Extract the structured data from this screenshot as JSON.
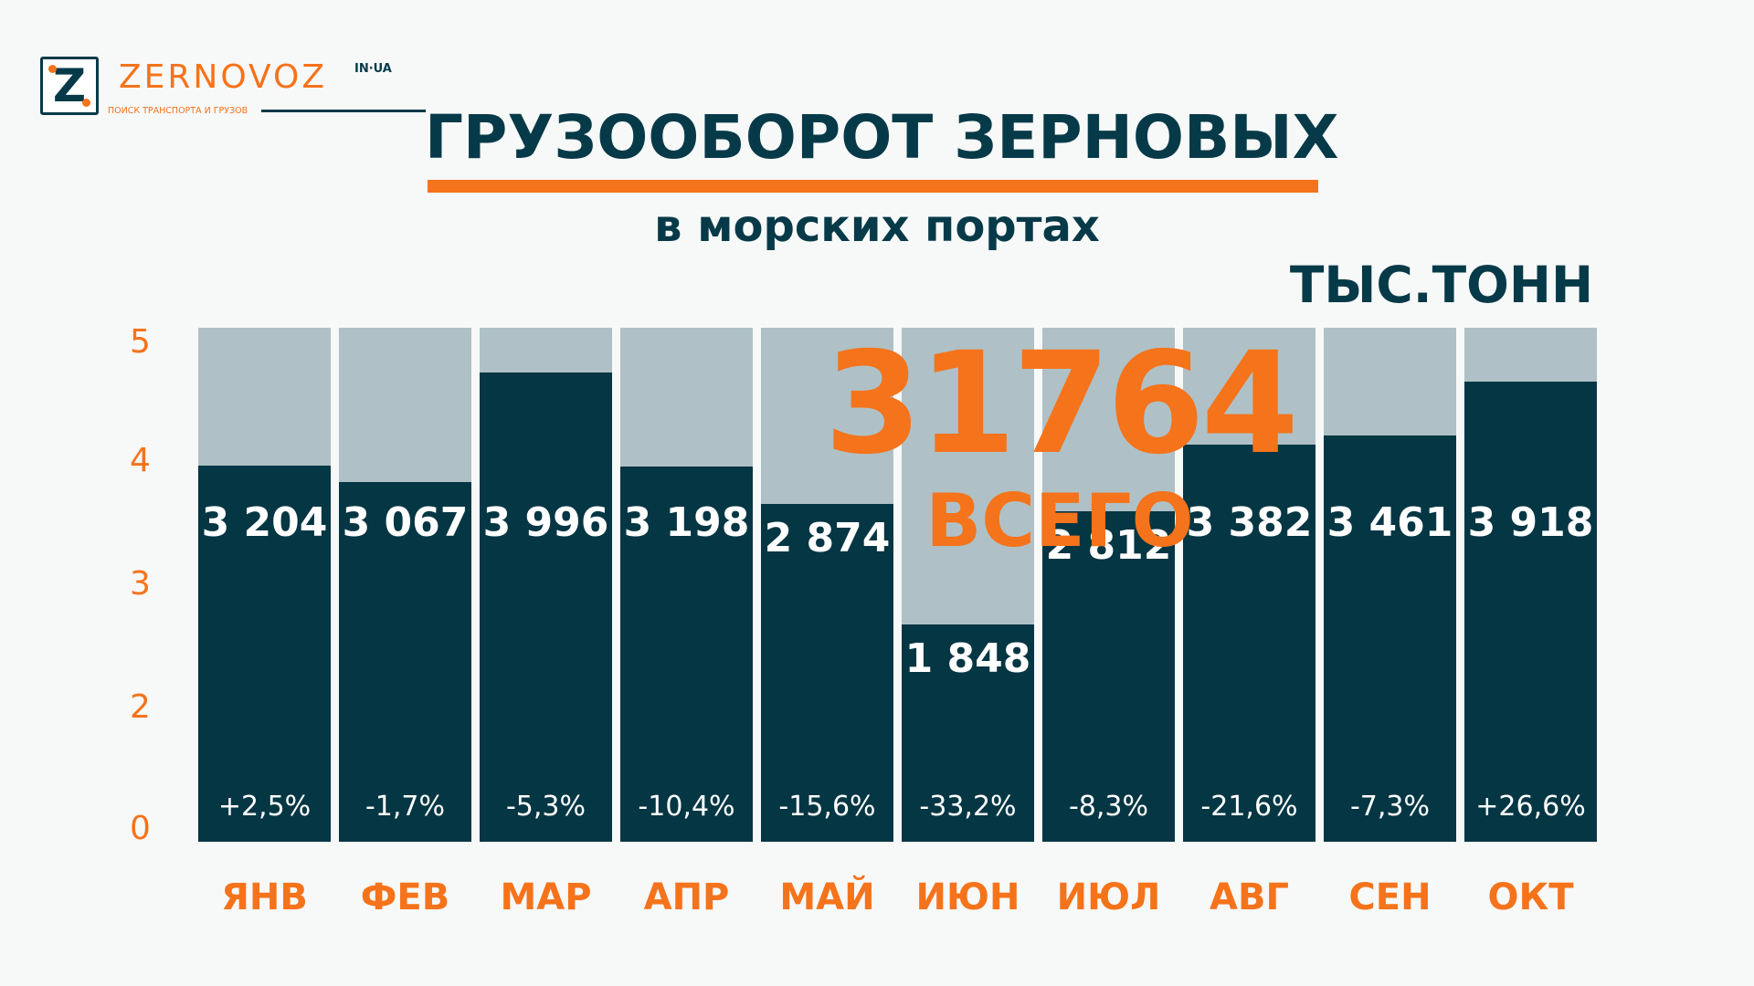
{
  "brand": {
    "logo_letter": "Z",
    "name": "ZERNOVOZ",
    "domain_suffix": "IN·UA",
    "tagline": "ПОИСК ТРАНСПОРТА И ГРУЗОВ"
  },
  "header": {
    "title": "ГРУЗООБОРОТ ЗЕРНОВЫХ",
    "subtitle": "в морских портах",
    "unit": "ТЫС.ТОНН"
  },
  "summary": {
    "total": "31764",
    "total_label": "ВСЕГО"
  },
  "colors": {
    "accent": "#f5731b",
    "bar": "#053644",
    "bar_background": "#afc1c6",
    "text_dark": "#073a48"
  },
  "chart_data": {
    "type": "bar",
    "title": "ГРУЗООБОРОТ ЗЕРНОВЫХ",
    "subtitle": "в морских портах",
    "ylabel": "ТЫС.ТОНН",
    "ylim": [
      0,
      5
    ],
    "yticks": [
      "5",
      "4",
      "3",
      "2",
      "0"
    ],
    "grid": false,
    "categories": [
      "ЯНВ",
      "ФЕВ",
      "МАР",
      "АПР",
      "МАЙ",
      "ИЮН",
      "ИЮЛ",
      "АВГ",
      "СЕН",
      "ОКТ"
    ],
    "values": [
      3204,
      3067,
      3996,
      3198,
      2874,
      1848,
      2812,
      3382,
      3461,
      3918
    ],
    "value_labels": [
      "3 204",
      "3 067",
      "3 996",
      "3 198",
      "2 874",
      "1 848",
      "2 812",
      "3 382",
      "3 461",
      "3 918"
    ],
    "change_labels": [
      "+2,5%",
      "-1,7%",
      "-5,3%",
      "-10,4%",
      "-15,6%",
      "-33,2%",
      "-8,3%",
      "-21,6%",
      "-7,3%",
      "+26,6%"
    ]
  }
}
